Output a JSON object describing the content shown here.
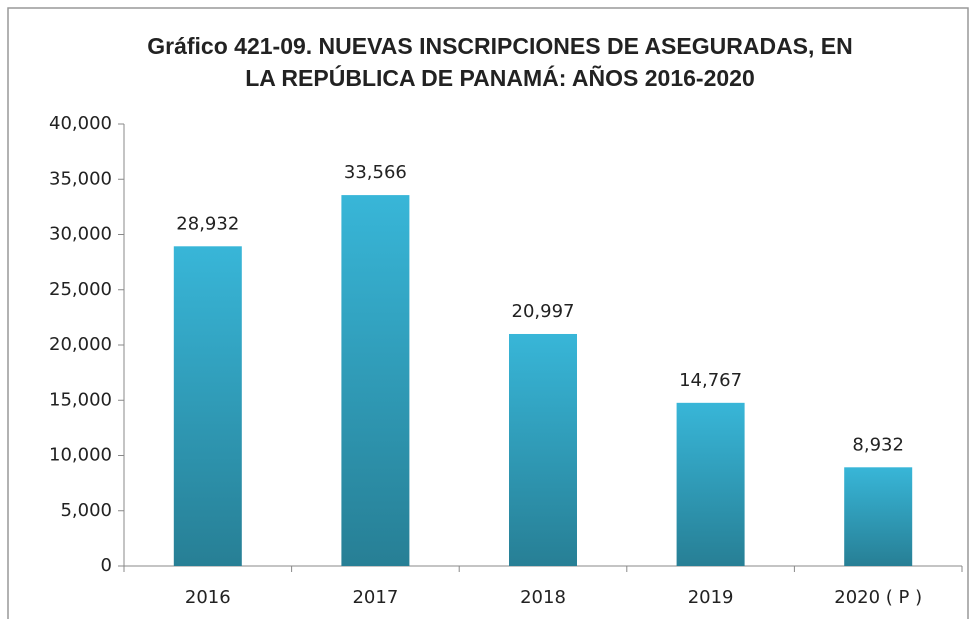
{
  "chart_data": {
    "type": "bar",
    "title": [
      "Gráfico 421-09. NUEVAS INSCRIPCIONES DE ASEGURADAS, EN",
      "LA REPÚBLICA DE PANAMÁ: AÑOS 2016-2020"
    ],
    "categories": [
      "2016",
      "2017",
      "2018",
      "2019",
      "2020 ( P )"
    ],
    "values": [
      28932,
      33566,
      20997,
      14767,
      8932
    ],
    "value_labels": [
      "28,932",
      "33,566",
      "20,997",
      "14,767",
      "8,932"
    ],
    "color": "#33a9c9",
    "ylim": [
      0,
      40000
    ],
    "yticks": [
      0,
      {
        "value": 5000,
        "label": "5,000"
      },
      {
        "value": 10000,
        "label": "10,000"
      },
      {
        "value": 15000,
        "label": "15,000"
      },
      {
        "value": 20000,
        "label": "20,000"
      },
      {
        "value": 25000,
        "label": "25,000"
      },
      {
        "value": 30000,
        "label": "30,000"
      },
      {
        "value": 35000,
        "label": "35,000"
      },
      {
        "value": 40000,
        "label": "40,000"
      }
    ],
    "grid": false
  }
}
